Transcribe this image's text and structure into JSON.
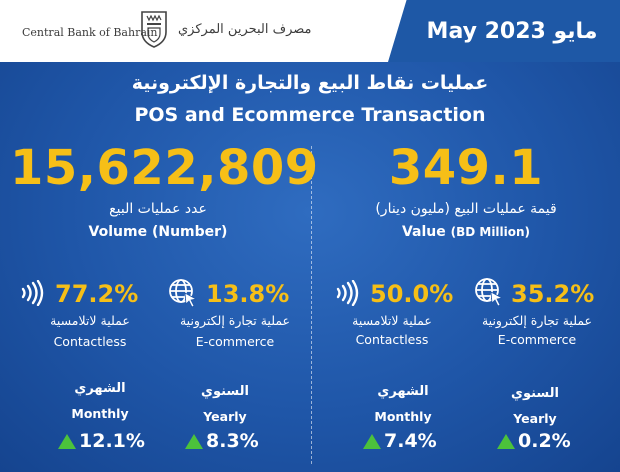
{
  "header": {
    "bank_name_en": "Central Bank of Bahrain",
    "bank_name_ar": "مصرف البحرين المركزي",
    "date_label": "May 2023 مايو",
    "brand_color": "#1e58a6"
  },
  "title": {
    "ar": "عمليات نقاط البيع والتجارة الإلكترونية",
    "en": "POS and Ecommerce Transaction"
  },
  "volume": {
    "value": "15,622,809",
    "label_ar": "عدد عمليات البيع",
    "label_en": "Volume (Number)",
    "contactless": {
      "pct": "77.2%",
      "label_ar": "عملية لاتلامسية",
      "label_en": "Contactless",
      "icon": "contactless-icon"
    },
    "ecommerce": {
      "pct": "13.8%",
      "label_ar": "عملية تجارة إلكترونية",
      "label_en": "E-commerce",
      "icon": "globe-cursor-icon"
    },
    "monthly": {
      "label_ar": "الشهري",
      "label_en": "Monthly",
      "value": "12.1%",
      "direction": "up"
    },
    "yearly": {
      "label_ar": "السنوي",
      "label_en": "Yearly",
      "value": "8.3%",
      "direction": "up"
    }
  },
  "value": {
    "value": "349.1",
    "label_ar": "قيمة عمليات البيع (مليون دينار)",
    "label_en_main": "Value",
    "label_en_unit": "(BD Million)",
    "contactless": {
      "pct": "50.0%",
      "label_ar": "عملية لاتلامسية",
      "label_en": "Contactless",
      "icon": "contactless-icon"
    },
    "ecommerce": {
      "pct": "35.2%",
      "label_ar": "عملية تجارة إلكترونية",
      "label_en": "E-commerce",
      "icon": "globe-cursor-icon"
    },
    "monthly": {
      "label_ar": "الشهري",
      "label_en": "Monthly",
      "value": "7.4%",
      "direction": "up"
    },
    "yearly": {
      "label_ar": "السنوي",
      "label_en": "Yearly",
      "value": "0.2%",
      "direction": "up"
    }
  },
  "colors": {
    "accent": "#f6bf17",
    "up": "#4cc23b",
    "background": "#1f56a8"
  }
}
